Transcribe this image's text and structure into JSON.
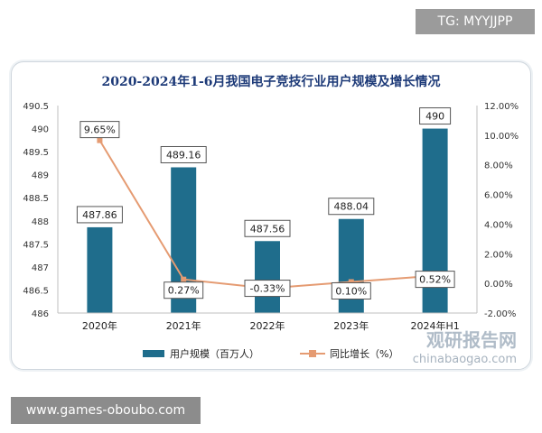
{
  "tg_badge": "TG: MYYJJPP",
  "footer_url": "www.games-oboubo.com",
  "watermark": {
    "brand": "观研报告网",
    "domain": "chinabaogao.com"
  },
  "colors": {
    "bar": "#1f6d8c",
    "line": "#e59b72",
    "title": "#1d3a78"
  },
  "chart_data": {
    "type": "bar",
    "title": "2020-2024年1-6月我国电子竞技行业用户规模及增长情况",
    "categories": [
      "2020年",
      "2021年",
      "2022年",
      "2023年",
      "2024年H1"
    ],
    "series": [
      {
        "name": "用户规模（百万人）",
        "type": "bar",
        "axis": "left",
        "values": [
          487.86,
          489.16,
          487.56,
          488.04,
          490
        ],
        "labels": [
          "487.86",
          "489.16",
          "487.56",
          "488.04",
          "490"
        ]
      },
      {
        "name": "同比增长（%）",
        "type": "line",
        "axis": "right",
        "values": [
          9.65,
          0.27,
          -0.33,
          0.1,
          0.52
        ],
        "labels": [
          "9.65%",
          "0.27%",
          "-0.33%",
          "0.10%",
          "0.52%"
        ]
      }
    ],
    "y_left": {
      "range": [
        486,
        490.5
      ],
      "ticks": [
        490.5,
        490,
        489.5,
        489,
        488.5,
        488,
        487.5,
        487,
        486.5,
        486
      ],
      "tick_labels": [
        "490.5",
        "490",
        "489.5",
        "489",
        "488.5",
        "488",
        "487.5",
        "487",
        "486.5",
        "486"
      ]
    },
    "y_right": {
      "range": [
        -2,
        12
      ],
      "ticks": [
        12,
        10,
        8,
        6,
        4,
        2,
        0,
        -2
      ],
      "tick_labels": [
        "12.00%",
        "10.00%",
        "8.00%",
        "6.00%",
        "4.00%",
        "2.00%",
        "0.00%",
        "-2.00%"
      ]
    },
    "grid": false,
    "legend_position": "bottom"
  }
}
